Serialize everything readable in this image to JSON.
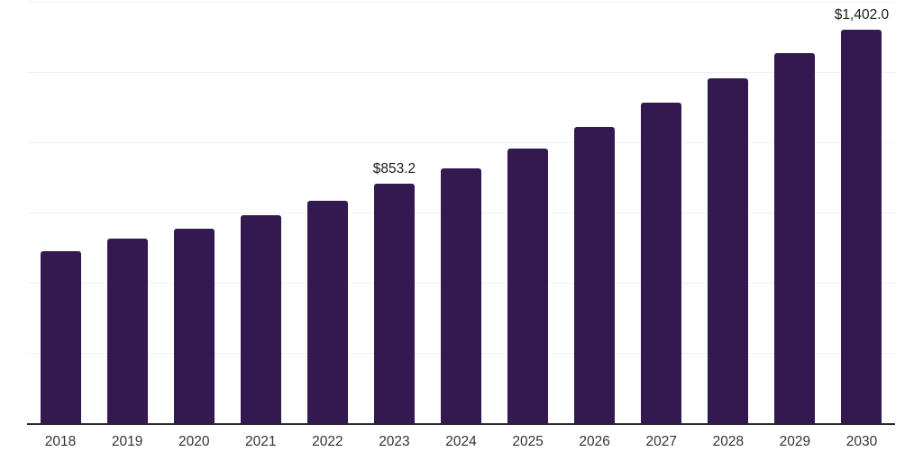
{
  "chart": {
    "background_color": "#ffffff",
    "bar_color": "#33194f",
    "grid_color": "#f0f0f2",
    "axis_color": "#26262e",
    "value_label_color": "#1a1a1a",
    "tick_label_color": "#333333"
  },
  "chart_data": {
    "type": "bar",
    "categories": [
      "2018",
      "2019",
      "2020",
      "2021",
      "2022",
      "2023",
      "2024",
      "2025",
      "2026",
      "2027",
      "2028",
      "2029",
      "2030"
    ],
    "values": [
      613,
      656,
      691,
      741,
      791,
      853.2,
      908,
      978,
      1055,
      1140,
      1229,
      1316,
      1402
    ],
    "data_labels": [
      "",
      "",
      "",
      "",
      "",
      "$853.2",
      "",
      "",
      "",
      "",
      "",
      "",
      "$1,402.0"
    ],
    "xlabel": "",
    "ylabel": "",
    "ylim": [
      0,
      1500
    ],
    "gridline_interval": 250,
    "grid": true,
    "legend": false,
    "y_axis_labels_visible": false
  }
}
